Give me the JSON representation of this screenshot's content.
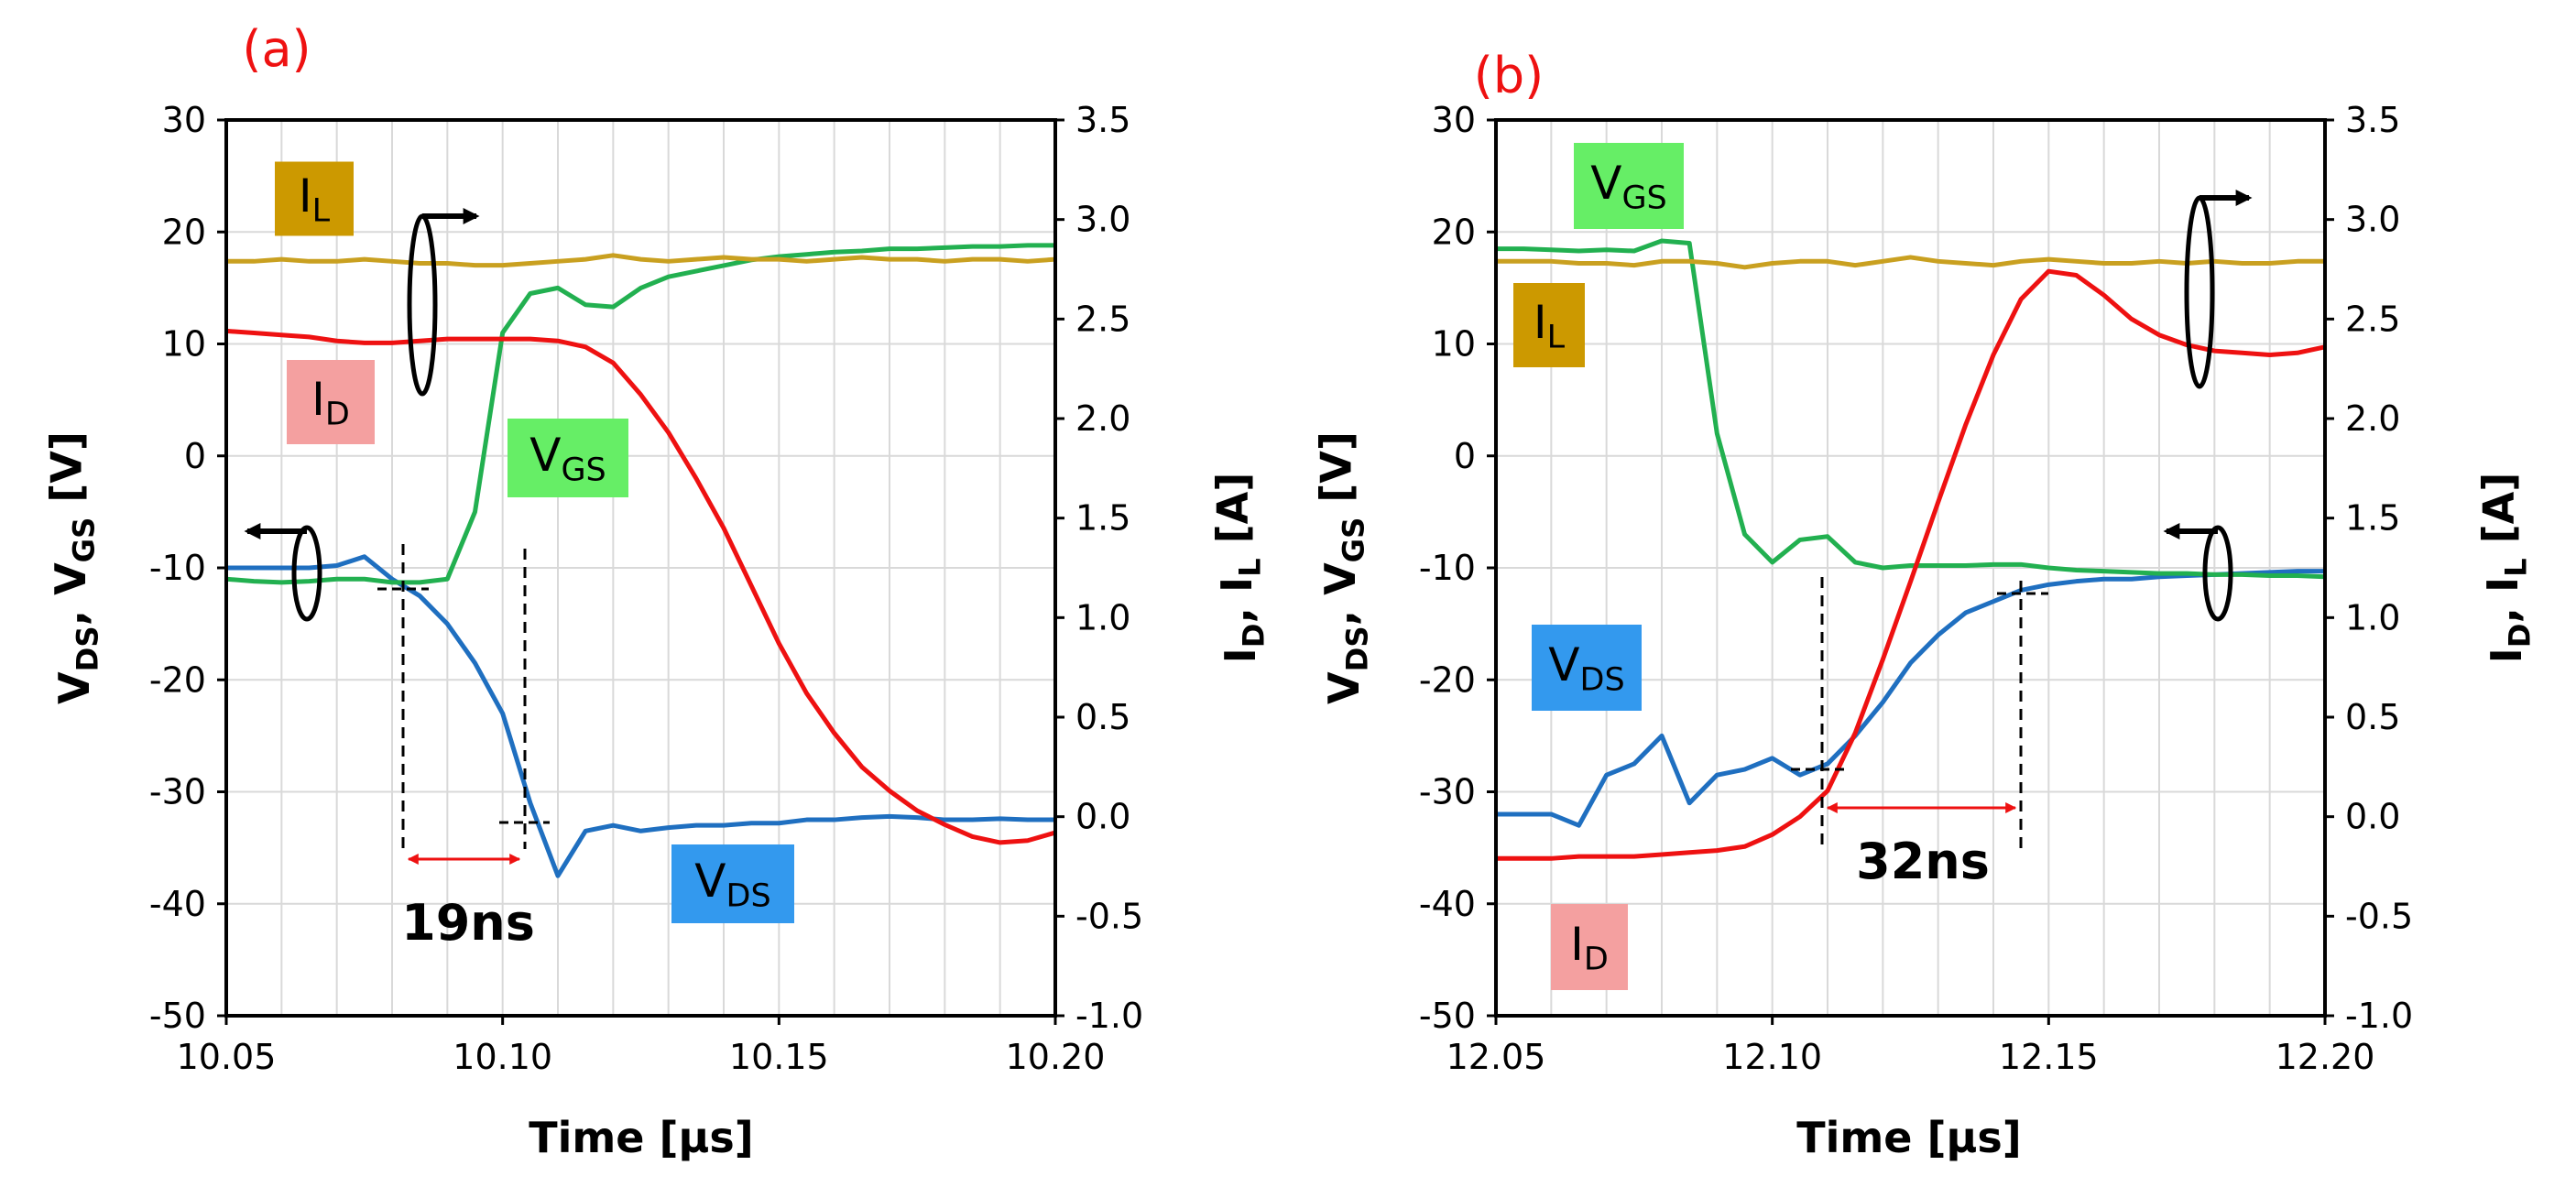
{
  "chart_data": [
    {
      "type": "line",
      "panel_label": "(a)",
      "x_label": "Time [μs]",
      "y_label": "VDS, VGS [V]",
      "y2_label": "ID, IL [A]",
      "annotation": "19ns",
      "x": [
        10.05,
        10.055,
        10.06,
        10.065,
        10.07,
        10.075,
        10.08,
        10.085,
        10.09,
        10.095,
        10.1,
        10.105,
        10.11,
        10.115,
        10.12,
        10.125,
        10.13,
        10.135,
        10.14,
        10.145,
        10.15,
        10.155,
        10.16,
        10.165,
        10.17,
        10.175,
        10.18,
        10.185,
        10.19,
        10.195,
        10.2
      ],
      "series": [
        {
          "name": "VDS",
          "color": "#1f6fc0",
          "values": [
            -10,
            -10,
            -10,
            -10,
            -9.8,
            -9,
            -11,
            -12.5,
            -15,
            -18.5,
            -23,
            -31,
            -37.5,
            -33.5,
            -33,
            -33.5,
            -33.2,
            -33,
            -33,
            -32.8,
            -32.8,
            -32.5,
            -32.5,
            -32.3,
            -32.2,
            -32.3,
            -32.5,
            -32.5,
            -32.4,
            -32.5,
            -32.5
          ]
        },
        {
          "name": "VGS",
          "color": "#22b050",
          "values": [
            -11,
            -11.2,
            -11.3,
            -11.2,
            -11,
            -11,
            -11.3,
            -11.3,
            -11,
            -5,
            11,
            14.5,
            15,
            13.5,
            13.3,
            15,
            16,
            16.5,
            17,
            17.5,
            17.8,
            18,
            18.2,
            18.3,
            18.5,
            18.5,
            18.6,
            18.7,
            18.7,
            18.8,
            18.8
          ]
        },
        {
          "name": "ID",
          "color": "#ee1111",
          "axis": "y2",
          "values": [
            2.44,
            2.43,
            2.42,
            2.41,
            2.39,
            2.38,
            2.38,
            2.39,
            2.4,
            2.4,
            2.4,
            2.4,
            2.39,
            2.36,
            2.28,
            2.12,
            1.93,
            1.7,
            1.45,
            1.16,
            0.87,
            0.62,
            0.42,
            0.25,
            0.13,
            0.03,
            -0.04,
            -0.1,
            -0.13,
            -0.12,
            -0.08
          ]
        },
        {
          "name": "IL",
          "color": "#c9a020",
          "axis": "y2",
          "values": [
            2.79,
            2.79,
            2.8,
            2.79,
            2.79,
            2.8,
            2.79,
            2.78,
            2.78,
            2.77,
            2.77,
            2.78,
            2.79,
            2.8,
            2.82,
            2.8,
            2.79,
            2.8,
            2.81,
            2.8,
            2.8,
            2.79,
            2.8,
            2.81,
            2.8,
            2.8,
            2.79,
            2.8,
            2.8,
            2.79,
            2.8
          ]
        }
      ],
      "xlim": [
        10.05,
        10.2
      ],
      "xticks": [
        10.05,
        {
          "value": 10.1,
          "label": "10.10"
        },
        10.15,
        {
          "value": 10.2,
          "label": "10.20"
        }
      ],
      "xgrid": [
        10.06,
        10.07,
        10.08,
        10.09,
        10.11,
        10.12,
        10.13,
        10.14,
        10.16,
        10.17,
        10.18,
        10.19
      ],
      "ylim": [
        -50,
        30
      ],
      "yticks": [
        -50,
        -40,
        -30,
        -20,
        -10,
        0,
        10,
        20,
        30
      ],
      "y2lim": [
        -1,
        3.5
      ],
      "y2ticks": [
        {
          "value": -1,
          "label": "-1.0"
        },
        -0.5,
        {
          "value": 0,
          "label": "0.0"
        },
        0.5,
        {
          "value": 1,
          "label": "1.0"
        },
        1.5,
        {
          "value": 2,
          "label": "2.0"
        },
        2.5,
        {
          "value": 3,
          "label": "3.0"
        },
        3.5
      ],
      "grid": true
    },
    {
      "type": "line",
      "panel_label": "(b)",
      "x_label": "Time [μs]",
      "y_label": "VDS, VGS [V]",
      "y2_label": "ID, IL [A]",
      "annotation": "32ns",
      "x": [
        12.05,
        12.055,
        12.06,
        12.065,
        12.07,
        12.075,
        12.08,
        12.085,
        12.09,
        12.095,
        12.1,
        12.105,
        12.11,
        12.115,
        12.12,
        12.125,
        12.13,
        12.135,
        12.14,
        12.145,
        12.15,
        12.155,
        12.16,
        12.165,
        12.17,
        12.175,
        12.18,
        12.185,
        12.19,
        12.195,
        12.2
      ],
      "series": [
        {
          "name": "VDS",
          "color": "#1f6fc0",
          "values": [
            -32,
            -32,
            -32,
            -33,
            -28.5,
            -27.5,
            -25,
            -31,
            -28.5,
            -28,
            -27,
            -28.5,
            -27.5,
            -25,
            -22,
            -18.5,
            -16,
            -14,
            -13,
            -12,
            -11.5,
            -11.2,
            -11,
            -11,
            -10.8,
            -10.7,
            -10.6,
            -10.5,
            -10.4,
            -10.3,
            -10.3
          ]
        },
        {
          "name": "VGS",
          "color": "#22b050",
          "values": [
            18.5,
            18.5,
            18.4,
            18.3,
            18.4,
            18.3,
            19.2,
            19,
            2,
            -7,
            -9.5,
            -7.5,
            -7.2,
            -9.5,
            -10,
            -9.8,
            -9.8,
            -9.8,
            -9.7,
            -9.7,
            -10,
            -10.2,
            -10.3,
            -10.4,
            -10.5,
            -10.5,
            -10.6,
            -10.6,
            -10.7,
            -10.7,
            -10.8
          ]
        },
        {
          "name": "ID",
          "color": "#ee1111",
          "axis": "y2",
          "values": [
            -0.21,
            -0.21,
            -0.21,
            -0.2,
            -0.2,
            -0.2,
            -0.19,
            -0.18,
            -0.17,
            -0.15,
            -0.09,
            0,
            0.13,
            0.42,
            0.79,
            1.18,
            1.58,
            1.97,
            2.32,
            2.6,
            2.74,
            2.72,
            2.62,
            2.5,
            2.42,
            2.37,
            2.34,
            2.33,
            2.32,
            2.33,
            2.36
          ]
        },
        {
          "name": "IL",
          "color": "#c9a020",
          "axis": "y2",
          "values": [
            2.79,
            2.79,
            2.79,
            2.78,
            2.78,
            2.77,
            2.79,
            2.79,
            2.78,
            2.76,
            2.78,
            2.79,
            2.79,
            2.77,
            2.79,
            2.81,
            2.79,
            2.78,
            2.77,
            2.79,
            2.8,
            2.79,
            2.78,
            2.78,
            2.79,
            2.78,
            2.79,
            2.78,
            2.78,
            2.79,
            2.79
          ]
        }
      ],
      "xlim": [
        12.05,
        12.2
      ],
      "xticks": [
        12.05,
        {
          "value": 12.1,
          "label": "12.10"
        },
        12.15,
        {
          "value": 12.2,
          "label": "12.20"
        }
      ],
      "xgrid": [
        12.06,
        12.07,
        12.08,
        12.09,
        12.11,
        12.12,
        12.13,
        12.14,
        12.16,
        12.17,
        12.18,
        12.19
      ],
      "ylim": [
        -50,
        30
      ],
      "yticks": [
        -50,
        -40,
        -30,
        -20,
        -10,
        0,
        10,
        20,
        30
      ],
      "y2lim": [
        -1,
        3.5
      ],
      "y2ticks": [
        {
          "value": -1,
          "label": "-1.0"
        },
        -0.5,
        {
          "value": 0,
          "label": "0.0"
        },
        0.5,
        {
          "value": 1,
          "label": "1.0"
        },
        1.5,
        {
          "value": 2,
          "label": "2.0"
        },
        2.5,
        {
          "value": 3,
          "label": "3.0"
        },
        3.5
      ],
      "grid": true
    }
  ]
}
